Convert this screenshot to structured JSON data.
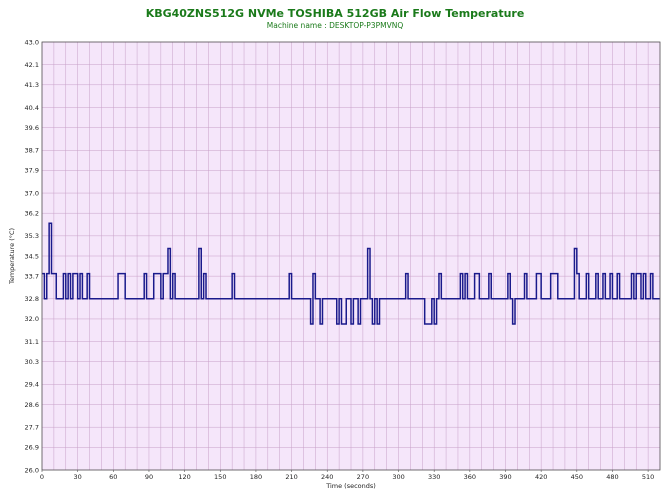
{
  "chart_data": {
    "type": "line",
    "title": "KBG40ZNS512G NVMe TOSHIBA 512GB Air Flow Temperature",
    "subtitle": "Machine name : DESKTOP-P3PMVNQ",
    "xlabel": "Time (seconds)",
    "ylabel": "Temperature (°C)",
    "xlim": [
      0,
      520
    ],
    "ylim": [
      26.0,
      43.0
    ],
    "x_ticks": [
      "0",
      "30",
      "60",
      "90",
      "120",
      "150",
      "180",
      "210",
      "240",
      "270",
      "300",
      "330",
      "360",
      "390",
      "420",
      "450",
      "480",
      "510"
    ],
    "y_ticks": [
      "26.0",
      "26.9",
      "27.7",
      "28.6",
      "29.4",
      "30.3",
      "31.1",
      "32.0",
      "32.8",
      "33.7",
      "34.5",
      "35.3",
      "36.2",
      "37.0",
      "37.9",
      "38.7",
      "39.6",
      "40.4",
      "41.3",
      "42.1",
      "43.0"
    ],
    "grid": true,
    "colors": {
      "line": "#1a1a8c",
      "plot_bg": "#f5e6fa",
      "grid": "#c8a0c8"
    },
    "series": [
      {
        "values": [
          [
            0,
            34
          ],
          [
            2,
            34
          ],
          [
            2,
            33
          ],
          [
            4,
            33
          ],
          [
            4,
            34
          ],
          [
            6,
            34
          ],
          [
            6,
            36
          ],
          [
            8,
            36
          ],
          [
            8,
            34
          ],
          [
            10,
            34
          ],
          [
            10,
            34
          ],
          [
            12,
            34
          ],
          [
            12,
            33
          ],
          [
            18,
            33
          ],
          [
            18,
            34
          ],
          [
            20,
            34
          ],
          [
            20,
            33
          ],
          [
            22,
            33
          ],
          [
            22,
            34
          ],
          [
            24,
            34
          ],
          [
            24,
            33
          ],
          [
            26,
            33
          ],
          [
            26,
            34
          ],
          [
            30,
            34
          ],
          [
            30,
            33
          ],
          [
            32,
            33
          ],
          [
            32,
            34
          ],
          [
            34,
            34
          ],
          [
            34,
            33
          ],
          [
            38,
            33
          ],
          [
            38,
            34
          ],
          [
            40,
            34
          ],
          [
            40,
            33
          ],
          [
            64,
            33
          ],
          [
            64,
            34
          ],
          [
            70,
            34
          ],
          [
            70,
            33
          ],
          [
            86,
            33
          ],
          [
            86,
            34
          ],
          [
            88,
            34
          ],
          [
            88,
            33
          ],
          [
            94,
            33
          ],
          [
            94,
            34
          ],
          [
            100,
            34
          ],
          [
            100,
            33
          ],
          [
            102,
            33
          ],
          [
            102,
            34
          ],
          [
            106,
            34
          ],
          [
            106,
            35
          ],
          [
            108,
            35
          ],
          [
            108,
            33
          ],
          [
            110,
            33
          ],
          [
            110,
            34
          ],
          [
            112,
            34
          ],
          [
            112,
            33
          ],
          [
            132,
            33
          ],
          [
            132,
            35
          ],
          [
            134,
            35
          ],
          [
            134,
            33
          ],
          [
            136,
            33
          ],
          [
            136,
            34
          ],
          [
            138,
            34
          ],
          [
            138,
            33
          ],
          [
            160,
            33
          ],
          [
            160,
            34
          ],
          [
            162,
            34
          ],
          [
            162,
            33
          ],
          [
            208,
            33
          ],
          [
            208,
            34
          ],
          [
            210,
            34
          ],
          [
            210,
            33
          ],
          [
            226,
            33
          ],
          [
            226,
            32
          ],
          [
            228,
            32
          ],
          [
            228,
            34
          ],
          [
            230,
            34
          ],
          [
            230,
            33
          ],
          [
            234,
            33
          ],
          [
            234,
            32
          ],
          [
            236,
            32
          ],
          [
            236,
            33
          ],
          [
            248,
            33
          ],
          [
            248,
            32
          ],
          [
            250,
            32
          ],
          [
            250,
            33
          ],
          [
            252,
            33
          ],
          [
            252,
            32
          ],
          [
            256,
            32
          ],
          [
            256,
            33
          ],
          [
            260,
            33
          ],
          [
            260,
            32
          ],
          [
            262,
            32
          ],
          [
            262,
            33
          ],
          [
            266,
            33
          ],
          [
            266,
            32
          ],
          [
            268,
            32
          ],
          [
            268,
            33
          ],
          [
            274,
            33
          ],
          [
            274,
            35
          ],
          [
            276,
            35
          ],
          [
            276,
            33
          ],
          [
            278,
            33
          ],
          [
            278,
            32
          ],
          [
            280,
            32
          ],
          [
            280,
            33
          ],
          [
            282,
            33
          ],
          [
            282,
            32
          ],
          [
            284,
            32
          ],
          [
            284,
            33
          ],
          [
            306,
            33
          ],
          [
            306,
            34
          ],
          [
            308,
            34
          ],
          [
            308,
            33
          ],
          [
            322,
            33
          ],
          [
            322,
            32
          ],
          [
            328,
            32
          ],
          [
            328,
            33
          ],
          [
            330,
            33
          ],
          [
            330,
            32
          ],
          [
            332,
            32
          ],
          [
            332,
            33
          ],
          [
            334,
            33
          ],
          [
            334,
            34
          ],
          [
            336,
            34
          ],
          [
            336,
            33
          ],
          [
            352,
            33
          ],
          [
            352,
            34
          ],
          [
            354,
            34
          ],
          [
            354,
            33
          ],
          [
            356,
            33
          ],
          [
            356,
            34
          ],
          [
            358,
            34
          ],
          [
            358,
            33
          ],
          [
            364,
            33
          ],
          [
            364,
            34
          ],
          [
            368,
            34
          ],
          [
            368,
            33
          ],
          [
            376,
            33
          ],
          [
            376,
            34
          ],
          [
            378,
            34
          ],
          [
            378,
            33
          ],
          [
            392,
            33
          ],
          [
            392,
            34
          ],
          [
            394,
            34
          ],
          [
            394,
            33
          ],
          [
            396,
            33
          ],
          [
            396,
            32
          ],
          [
            398,
            32
          ],
          [
            398,
            33
          ],
          [
            406,
            33
          ],
          [
            406,
            34
          ],
          [
            408,
            34
          ],
          [
            408,
            33
          ],
          [
            416,
            33
          ],
          [
            416,
            34
          ],
          [
            420,
            34
          ],
          [
            420,
            33
          ],
          [
            428,
            33
          ],
          [
            428,
            34
          ],
          [
            434,
            34
          ],
          [
            434,
            33
          ],
          [
            448,
            33
          ],
          [
            448,
            35
          ],
          [
            450,
            35
          ],
          [
            450,
            34
          ],
          [
            452,
            34
          ],
          [
            452,
            33
          ],
          [
            458,
            33
          ],
          [
            458,
            34
          ],
          [
            460,
            34
          ],
          [
            460,
            33
          ],
          [
            466,
            33
          ],
          [
            466,
            34
          ],
          [
            468,
            34
          ],
          [
            468,
            33
          ],
          [
            472,
            33
          ],
          [
            472,
            34
          ],
          [
            474,
            34
          ],
          [
            474,
            33
          ],
          [
            478,
            33
          ],
          [
            478,
            34
          ],
          [
            480,
            34
          ],
          [
            480,
            33
          ],
          [
            484,
            33
          ],
          [
            484,
            34
          ],
          [
            486,
            34
          ],
          [
            486,
            33
          ],
          [
            496,
            33
          ],
          [
            496,
            34
          ],
          [
            498,
            34
          ],
          [
            498,
            33
          ],
          [
            500,
            33
          ],
          [
            500,
            34
          ],
          [
            504,
            34
          ],
          [
            504,
            33
          ],
          [
            506,
            33
          ],
          [
            506,
            34
          ],
          [
            508,
            34
          ],
          [
            508,
            33
          ],
          [
            512,
            33
          ],
          [
            512,
            34
          ],
          [
            514,
            34
          ],
          [
            514,
            33
          ],
          [
            520,
            33
          ]
        ]
      }
    ]
  }
}
